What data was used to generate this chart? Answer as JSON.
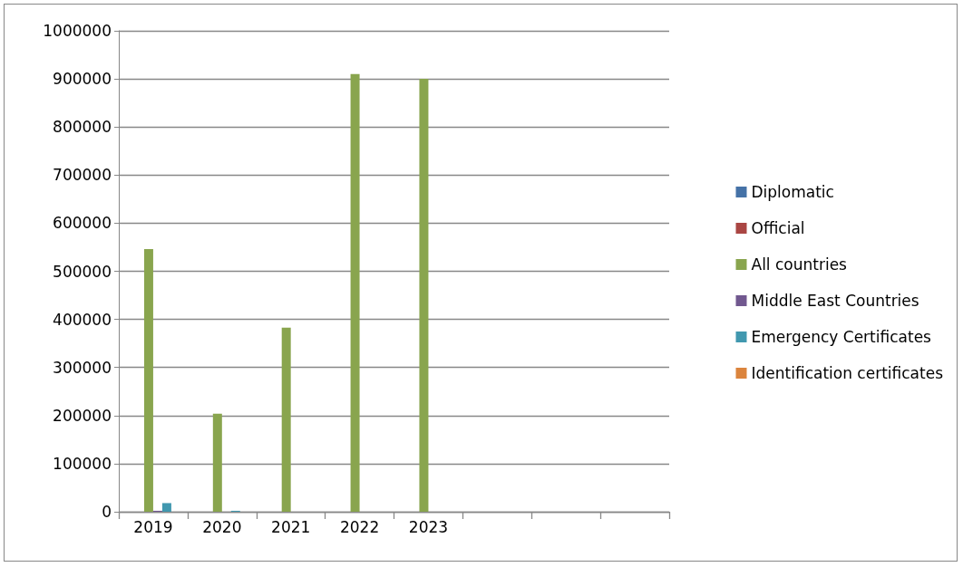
{
  "chart_data": {
    "type": "bar",
    "categories": [
      "2019",
      "2020",
      "2021",
      "2022",
      "2023",
      null,
      null,
      null
    ],
    "series": [
      {
        "name": "Diplomatic",
        "color": "#4572a7",
        "values": [
          0,
          0,
          0,
          0,
          0,
          null,
          null,
          null
        ]
      },
      {
        "name": "Official",
        "color": "#aa4643",
        "values": [
          0,
          0,
          0,
          0,
          0,
          null,
          null,
          null
        ]
      },
      {
        "name": "All countries",
        "color": "#89a54e",
        "values": [
          546000,
          204000,
          383000,
          910000,
          900000,
          null,
          null,
          null
        ]
      },
      {
        "name": "Middle East Countries",
        "color": "#71588f",
        "values": [
          2000,
          0,
          0,
          0,
          0,
          null,
          null,
          null
        ]
      },
      {
        "name": "Emergency Certificates",
        "color": "#4198af",
        "values": [
          18000,
          2000,
          0,
          0,
          0,
          null,
          null,
          null
        ]
      },
      {
        "name": "Identification certificates",
        "color": "#db843d",
        "values": [
          0,
          0,
          0,
          0,
          0,
          null,
          null,
          null
        ]
      }
    ],
    "ylim": [
      0,
      1000000
    ],
    "yticks": [
      0,
      100000,
      200000,
      300000,
      400000,
      500000,
      600000,
      700000,
      800000,
      900000,
      1000000
    ],
    "grid": "y",
    "legend": "right"
  }
}
